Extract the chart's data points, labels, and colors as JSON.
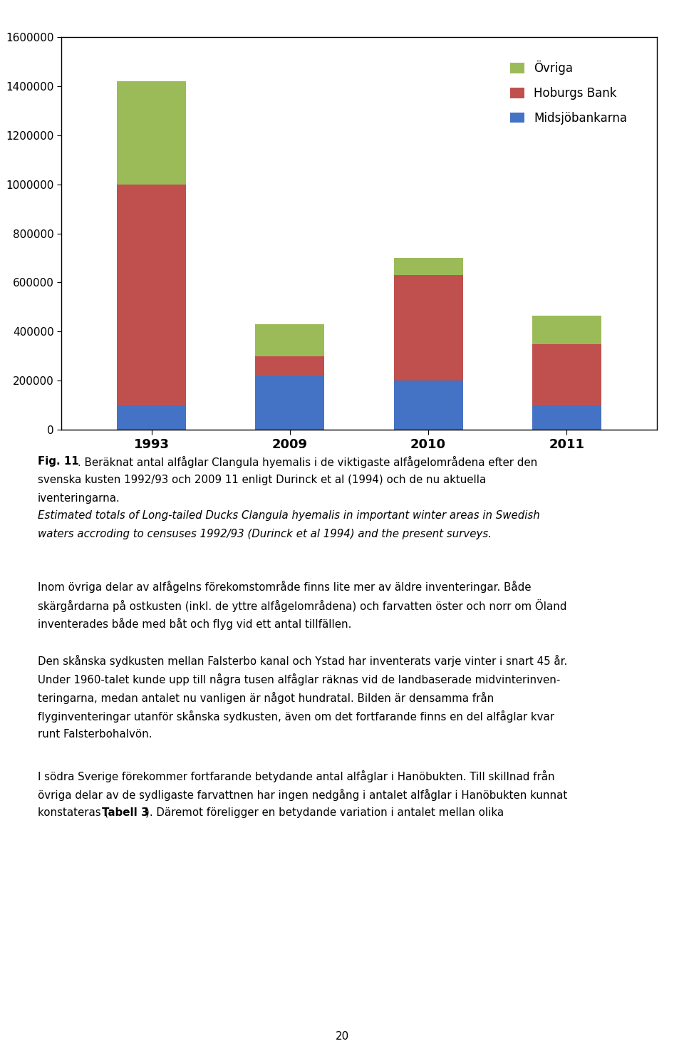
{
  "years": [
    "1993",
    "2009",
    "2010",
    "2011"
  ],
  "midsjobankarna": [
    100000,
    220000,
    200000,
    100000
  ],
  "hoburgs_bank": [
    900000,
    80000,
    430000,
    250000
  ],
  "ovriga": [
    420000,
    130000,
    70000,
    115000
  ],
  "color_midsjobankarna": "#4472C4",
  "color_hoburgs_bank": "#C0504D",
  "color_ovriga": "#9BBB59",
  "ylim": [
    0,
    1600000
  ],
  "yticks": [
    0,
    200000,
    400000,
    600000,
    800000,
    1000000,
    1200000,
    1400000,
    1600000
  ],
  "legend_labels": [
    "Övriga",
    "Hoburgs Bank",
    "Midsjöbankarna"
  ],
  "bar_width": 0.5,
  "chart_bg": "#FFFFFF",
  "text_color": "#000000",
  "page_number": "20"
}
